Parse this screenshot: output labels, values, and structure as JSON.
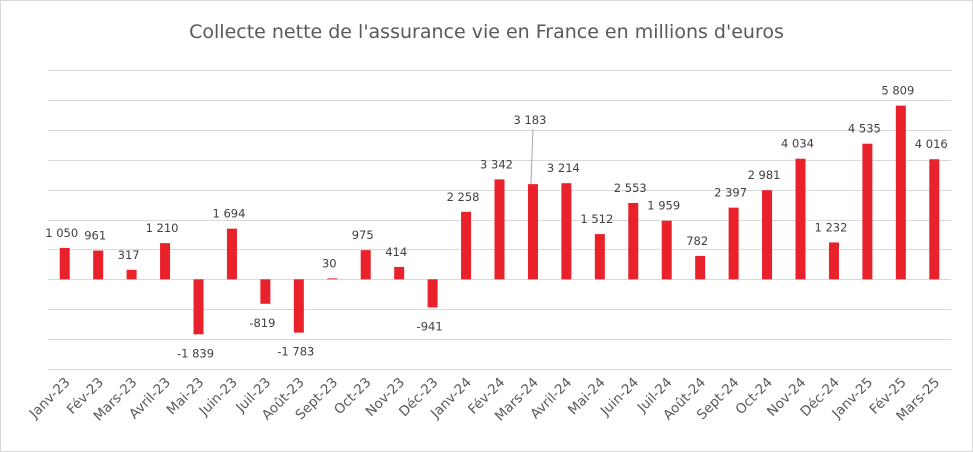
{
  "chart_data": {
    "type": "bar",
    "title": "Collecte nette de l'assurance vie en France en millions d'euros",
    "xlabel": "",
    "ylabel": "",
    "ylim": [
      -3000,
      7000
    ],
    "grid": true,
    "legend": "none",
    "bar_color": "#e8212b",
    "categories": [
      "Janv-23",
      "Fév-23",
      "Mars-23",
      "Avril-23",
      "Mai-23",
      "Juin-23",
      "Juil-23",
      "Août-23",
      "Sept-23",
      "Oct-23",
      "Nov-23",
      "Déc-23",
      "Janv-24",
      "Fév-24",
      "Mars-24",
      "Avril-24",
      "Mai-24",
      "Juin-24",
      "Juil-24",
      "Août-24",
      "Sept-24",
      "Oct-24",
      "Nov-24",
      "Déc-24",
      "Janv-25",
      "Fév-25",
      "Mars-25"
    ],
    "values": [
      1050,
      961,
      317,
      1210,
      -1839,
      1694,
      -819,
      -1783,
      30,
      975,
      414,
      -941,
      2258,
      3342,
      3183,
      3214,
      1512,
      2553,
      1959,
      782,
      2397,
      2981,
      4034,
      1232,
      4535,
      5809,
      4016
    ],
    "value_labels": [
      "1 050",
      "961",
      "317",
      "1 210",
      "-1 839",
      "1 694",
      "-819",
      "-1 783",
      "30",
      "975",
      "414",
      "-941",
      "2 258",
      "3 342",
      "3 183",
      "3 214",
      "1 512",
      "2 553",
      "1 959",
      "782",
      "2 397",
      "2 981",
      "4 034",
      "1 232",
      "4 535",
      "5 809",
      "4 016"
    ]
  }
}
